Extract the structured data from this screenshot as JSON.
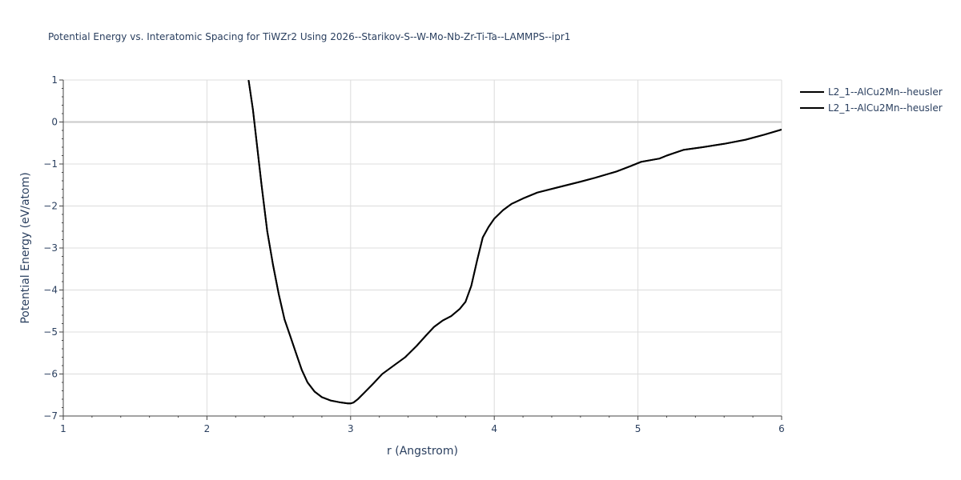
{
  "chart_data": {
    "type": "line",
    "title": "Potential Energy vs. Interatomic Spacing for TiWZr2 Using 2026--Starikov-S--W-Mo-Nb-Zr-Ti-Ta--LAMMPS--ipr1",
    "xlabel": "r (Angstrom)",
    "ylabel": "Potential Energy (eV/atom)",
    "xlim": [
      1,
      6
    ],
    "ylim": [
      -7,
      1
    ],
    "xticks": [
      1,
      2,
      3,
      4,
      5,
      6
    ],
    "yticks": [
      1,
      0,
      -1,
      -2,
      -3,
      -4,
      -5,
      -6,
      -7
    ],
    "ytick_labels": [
      "1",
      "0",
      "−1",
      "−2",
      "−3",
      "−4",
      "−5",
      "−6",
      "−7"
    ],
    "grid": true,
    "legend_position": "top-right",
    "series": [
      {
        "name": "L2_1--AlCu2Mn--heusler",
        "color": "#000000",
        "x": [
          2.29,
          2.32,
          2.35,
          2.38,
          2.42,
          2.46,
          2.5,
          2.54,
          2.58,
          2.62,
          2.66,
          2.7,
          2.75,
          2.8,
          2.86,
          2.92,
          2.98,
          3.0,
          3.02,
          3.05,
          3.1,
          3.16,
          3.22,
          3.3,
          3.38,
          3.46,
          3.52,
          3.58,
          3.64,
          3.7,
          3.76,
          3.8,
          3.84,
          3.88,
          3.92,
          3.96,
          4.0,
          4.06,
          4.12,
          4.2,
          4.3,
          4.45,
          4.6,
          4.7,
          4.85,
          4.95,
          5.02,
          5.1,
          5.15,
          5.2,
          5.25,
          5.32,
          5.45,
          5.6,
          5.75,
          5.88,
          6.0
        ],
        "y": [
          1.0,
          0.3,
          -0.6,
          -1.5,
          -2.6,
          -3.4,
          -4.1,
          -4.7,
          -5.1,
          -5.5,
          -5.9,
          -6.2,
          -6.42,
          -6.55,
          -6.63,
          -6.67,
          -6.7,
          -6.7,
          -6.68,
          -6.6,
          -6.43,
          -6.22,
          -6.0,
          -5.8,
          -5.6,
          -5.33,
          -5.1,
          -4.88,
          -4.73,
          -4.62,
          -4.45,
          -4.28,
          -3.9,
          -3.3,
          -2.75,
          -2.5,
          -2.3,
          -2.1,
          -1.95,
          -1.82,
          -1.68,
          -1.55,
          -1.42,
          -1.33,
          -1.18,
          -1.05,
          -0.95,
          -0.9,
          -0.87,
          -0.8,
          -0.74,
          -0.66,
          -0.6,
          -0.52,
          -0.42,
          -0.3,
          -0.18
        ]
      },
      {
        "name": "L2_1--AlCu2Mn--heusler",
        "color": "#000000",
        "x": [
          2.29,
          2.32,
          2.35,
          2.38,
          2.42,
          2.46,
          2.5,
          2.54,
          2.58,
          2.62,
          2.66,
          2.7,
          2.75,
          2.8,
          2.86,
          2.92,
          2.98,
          3.0,
          3.02,
          3.05,
          3.1,
          3.16,
          3.22,
          3.3,
          3.38,
          3.46,
          3.52,
          3.58,
          3.64,
          3.7,
          3.76,
          3.8,
          3.84,
          3.88,
          3.92,
          3.96,
          4.0,
          4.06,
          4.12,
          4.2,
          4.3,
          4.45,
          4.6,
          4.7,
          4.85,
          4.95,
          5.02,
          5.1,
          5.15,
          5.2,
          5.25,
          5.32,
          5.45,
          5.6,
          5.75,
          5.88,
          6.0
        ],
        "y": [
          1.0,
          0.3,
          -0.6,
          -1.5,
          -2.6,
          -3.4,
          -4.1,
          -4.7,
          -5.1,
          -5.5,
          -5.9,
          -6.2,
          -6.42,
          -6.55,
          -6.63,
          -6.67,
          -6.7,
          -6.7,
          -6.68,
          -6.6,
          -6.43,
          -6.22,
          -6.0,
          -5.8,
          -5.6,
          -5.33,
          -5.1,
          -4.88,
          -4.73,
          -4.62,
          -4.45,
          -4.28,
          -3.9,
          -3.3,
          -2.75,
          -2.5,
          -2.3,
          -2.1,
          -1.95,
          -1.82,
          -1.68,
          -1.55,
          -1.42,
          -1.33,
          -1.18,
          -1.05,
          -0.95,
          -0.9,
          -0.87,
          -0.8,
          -0.74,
          -0.66,
          -0.6,
          -0.52,
          -0.42,
          -0.3,
          -0.18
        ]
      }
    ]
  }
}
